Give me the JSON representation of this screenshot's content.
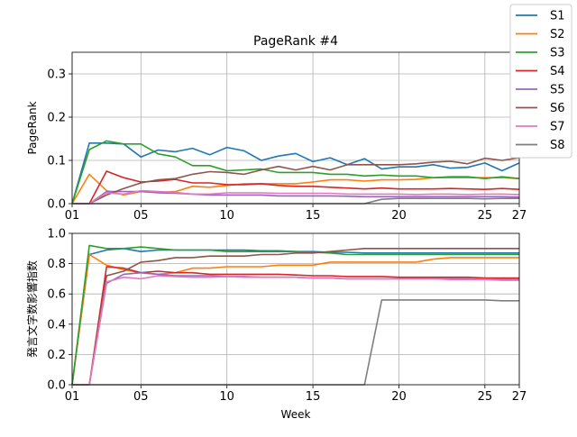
{
  "chart_data": [
    {
      "type": "line",
      "title": "PageRank #4",
      "xlabel": "",
      "ylabel": "PageRank",
      "xlim": [
        1,
        27
      ],
      "ylim": [
        0,
        0.35
      ],
      "grid": true,
      "x_ticks": [
        1,
        5,
        10,
        15,
        20,
        25,
        27
      ],
      "x_tick_labels": [
        "01",
        "05",
        "10",
        "15",
        "20",
        "25",
        "27"
      ],
      "y_ticks": [
        0.0,
        0.1,
        0.2,
        0.3
      ],
      "y_tick_labels": [
        "0.0",
        "0.1",
        "0.2",
        "0.3"
      ],
      "x": [
        1,
        2,
        3,
        4,
        5,
        6,
        7,
        8,
        9,
        10,
        11,
        12,
        13,
        14,
        15,
        16,
        17,
        18,
        19,
        20,
        21,
        22,
        23,
        24,
        25,
        26,
        27
      ],
      "series": [
        {
          "name": "S1",
          "color": "#1f77b4",
          "values": [
            0.0,
            0.14,
            0.14,
            0.138,
            0.108,
            0.124,
            0.12,
            0.128,
            0.113,
            0.13,
            0.122,
            0.1,
            0.11,
            0.116,
            0.097,
            0.106,
            0.09,
            0.104,
            0.08,
            0.085,
            0.085,
            0.09,
            0.082,
            0.084,
            0.094,
            0.076,
            0.094
          ]
        },
        {
          "name": "S2",
          "color": "#ff7f0e",
          "values": [
            0.0,
            0.068,
            0.03,
            0.02,
            0.028,
            0.026,
            0.028,
            0.04,
            0.038,
            0.042,
            0.046,
            0.046,
            0.046,
            0.046,
            0.05,
            0.055,
            0.055,
            0.052,
            0.055,
            0.055,
            0.056,
            0.06,
            0.06,
            0.06,
            0.06,
            0.06,
            0.058
          ]
        },
        {
          "name": "S3",
          "color": "#2ca02c",
          "values": [
            0.0,
            0.125,
            0.145,
            0.138,
            0.138,
            0.115,
            0.108,
            0.088,
            0.088,
            0.076,
            0.078,
            0.08,
            0.072,
            0.072,
            0.072,
            0.068,
            0.068,
            0.064,
            0.066,
            0.064,
            0.064,
            0.06,
            0.062,
            0.062,
            0.058,
            0.062,
            0.058
          ]
        },
        {
          "name": "S4",
          "color": "#d62728",
          "values": [
            0.0,
            0.0,
            0.075,
            0.06,
            0.05,
            0.052,
            0.056,
            0.048,
            0.048,
            0.044,
            0.044,
            0.046,
            0.042,
            0.04,
            0.04,
            0.038,
            0.036,
            0.034,
            0.036,
            0.034,
            0.034,
            0.034,
            0.035,
            0.034,
            0.033,
            0.035,
            0.033
          ]
        },
        {
          "name": "S5",
          "color": "#9467bd",
          "values": [
            0.0,
            0.0,
            0.028,
            0.028,
            0.028,
            0.025,
            0.024,
            0.022,
            0.02,
            0.02,
            0.02,
            0.02,
            0.018,
            0.018,
            0.018,
            0.018,
            0.017,
            0.016,
            0.016,
            0.016,
            0.016,
            0.016,
            0.016,
            0.016,
            0.016,
            0.016,
            0.015
          ]
        },
        {
          "name": "S6",
          "color": "#8c564b",
          "values": [
            0.0,
            0.0,
            0.02,
            0.035,
            0.048,
            0.055,
            0.058,
            0.068,
            0.074,
            0.072,
            0.068,
            0.078,
            0.086,
            0.078,
            0.086,
            0.078,
            0.09,
            0.09,
            0.09,
            0.09,
            0.092,
            0.096,
            0.098,
            0.092,
            0.105,
            0.1,
            0.106
          ]
        },
        {
          "name": "S7",
          "color": "#e377c2",
          "values": [
            0.0,
            0.0,
            0.025,
            0.022,
            0.03,
            0.028,
            0.026,
            0.022,
            0.022,
            0.025,
            0.025,
            0.025,
            0.024,
            0.024,
            0.024,
            0.024,
            0.022,
            0.022,
            0.022,
            0.022,
            0.021,
            0.022,
            0.022,
            0.021,
            0.022,
            0.022,
            0.021
          ]
        },
        {
          "name": "S8",
          "color": "#7f7f7f",
          "values": [
            0.0,
            0.0,
            0.0,
            0.0,
            0.0,
            0.0,
            0.0,
            0.0,
            0.0,
            0.0,
            0.0,
            0.0,
            0.0,
            0.0,
            0.0,
            0.0,
            0.0,
            0.0,
            0.01,
            0.012,
            0.012,
            0.012,
            0.012,
            0.012,
            0.011,
            0.012,
            0.012
          ]
        }
      ]
    },
    {
      "type": "line",
      "title": "",
      "xlabel": "Week",
      "ylabel": "発言文字数影響指数",
      "xlim": [
        1,
        27
      ],
      "ylim": [
        0,
        1.0
      ],
      "grid": true,
      "x_ticks": [
        1,
        5,
        10,
        15,
        20,
        25,
        27
      ],
      "x_tick_labels": [
        "01",
        "05",
        "10",
        "15",
        "20",
        "25",
        "27"
      ],
      "y_ticks": [
        0.0,
        0.2,
        0.4,
        0.6,
        0.8,
        1.0
      ],
      "y_tick_labels": [
        "0.0",
        "0.2",
        "0.4",
        "0.6",
        "0.8",
        "1.0"
      ],
      "x": [
        1,
        2,
        3,
        4,
        5,
        6,
        7,
        8,
        9,
        10,
        11,
        12,
        13,
        14,
        15,
        16,
        17,
        18,
        19,
        20,
        21,
        22,
        23,
        24,
        25,
        26,
        27
      ],
      "series": [
        {
          "name": "S1",
          "color": "#1f77b4",
          "values": [
            0.0,
            0.86,
            0.89,
            0.9,
            0.88,
            0.89,
            0.89,
            0.89,
            0.89,
            0.89,
            0.89,
            0.885,
            0.885,
            0.88,
            0.88,
            0.875,
            0.875,
            0.87,
            0.87,
            0.87,
            0.87,
            0.87,
            0.87,
            0.87,
            0.87,
            0.87,
            0.87
          ]
        },
        {
          "name": "S2",
          "color": "#ff7f0e",
          "values": [
            0.0,
            0.86,
            0.79,
            0.76,
            0.74,
            0.73,
            0.74,
            0.77,
            0.77,
            0.78,
            0.78,
            0.78,
            0.79,
            0.79,
            0.79,
            0.81,
            0.81,
            0.81,
            0.81,
            0.81,
            0.81,
            0.83,
            0.84,
            0.84,
            0.84,
            0.84,
            0.84
          ]
        },
        {
          "name": "S3",
          "color": "#2ca02c",
          "values": [
            0.0,
            0.92,
            0.9,
            0.9,
            0.91,
            0.9,
            0.89,
            0.89,
            0.89,
            0.88,
            0.88,
            0.88,
            0.88,
            0.88,
            0.875,
            0.87,
            0.86,
            0.86,
            0.86,
            0.86,
            0.86,
            0.86,
            0.86,
            0.86,
            0.86,
            0.86,
            0.86
          ]
        },
        {
          "name": "S4",
          "color": "#d62728",
          "values": [
            0.0,
            0.0,
            0.78,
            0.77,
            0.74,
            0.75,
            0.74,
            0.74,
            0.73,
            0.73,
            0.73,
            0.73,
            0.73,
            0.725,
            0.72,
            0.72,
            0.715,
            0.715,
            0.715,
            0.71,
            0.71,
            0.71,
            0.71,
            0.71,
            0.705,
            0.705,
            0.705
          ]
        },
        {
          "name": "S5",
          "color": "#9467bd",
          "values": [
            0.0,
            0.0,
            0.67,
            0.73,
            0.74,
            0.73,
            0.72,
            0.72,
            0.72,
            0.715,
            0.715,
            0.71,
            0.71,
            0.71,
            0.705,
            0.705,
            0.7,
            0.7,
            0.7,
            0.7,
            0.7,
            0.7,
            0.7,
            0.7,
            0.695,
            0.695,
            0.695
          ]
        },
        {
          "name": "S6",
          "color": "#8c564b",
          "values": [
            0.0,
            0.0,
            0.72,
            0.75,
            0.81,
            0.82,
            0.84,
            0.84,
            0.85,
            0.85,
            0.85,
            0.86,
            0.86,
            0.87,
            0.87,
            0.88,
            0.89,
            0.9,
            0.9,
            0.9,
            0.9,
            0.9,
            0.9,
            0.9,
            0.9,
            0.9,
            0.9
          ]
        },
        {
          "name": "S7",
          "color": "#e377c2",
          "values": [
            0.0,
            0.0,
            0.68,
            0.71,
            0.7,
            0.72,
            0.715,
            0.71,
            0.71,
            0.715,
            0.71,
            0.71,
            0.71,
            0.71,
            0.705,
            0.705,
            0.7,
            0.7,
            0.7,
            0.7,
            0.7,
            0.7,
            0.695,
            0.695,
            0.695,
            0.69,
            0.69
          ]
        },
        {
          "name": "S8",
          "color": "#7f7f7f",
          "values": [
            0.0,
            0.0,
            0.0,
            0.0,
            0.0,
            0.0,
            0.0,
            0.0,
            0.0,
            0.0,
            0.0,
            0.0,
            0.0,
            0.0,
            0.0,
            0.0,
            0.0,
            0.0,
            0.56,
            0.56,
            0.56,
            0.56,
            0.56,
            0.56,
            0.56,
            0.555,
            0.555
          ]
        }
      ]
    }
  ],
  "legend": {
    "placement": "top-right",
    "entries": [
      "S1",
      "S2",
      "S3",
      "S4",
      "S5",
      "S6",
      "S7",
      "S8"
    ]
  }
}
